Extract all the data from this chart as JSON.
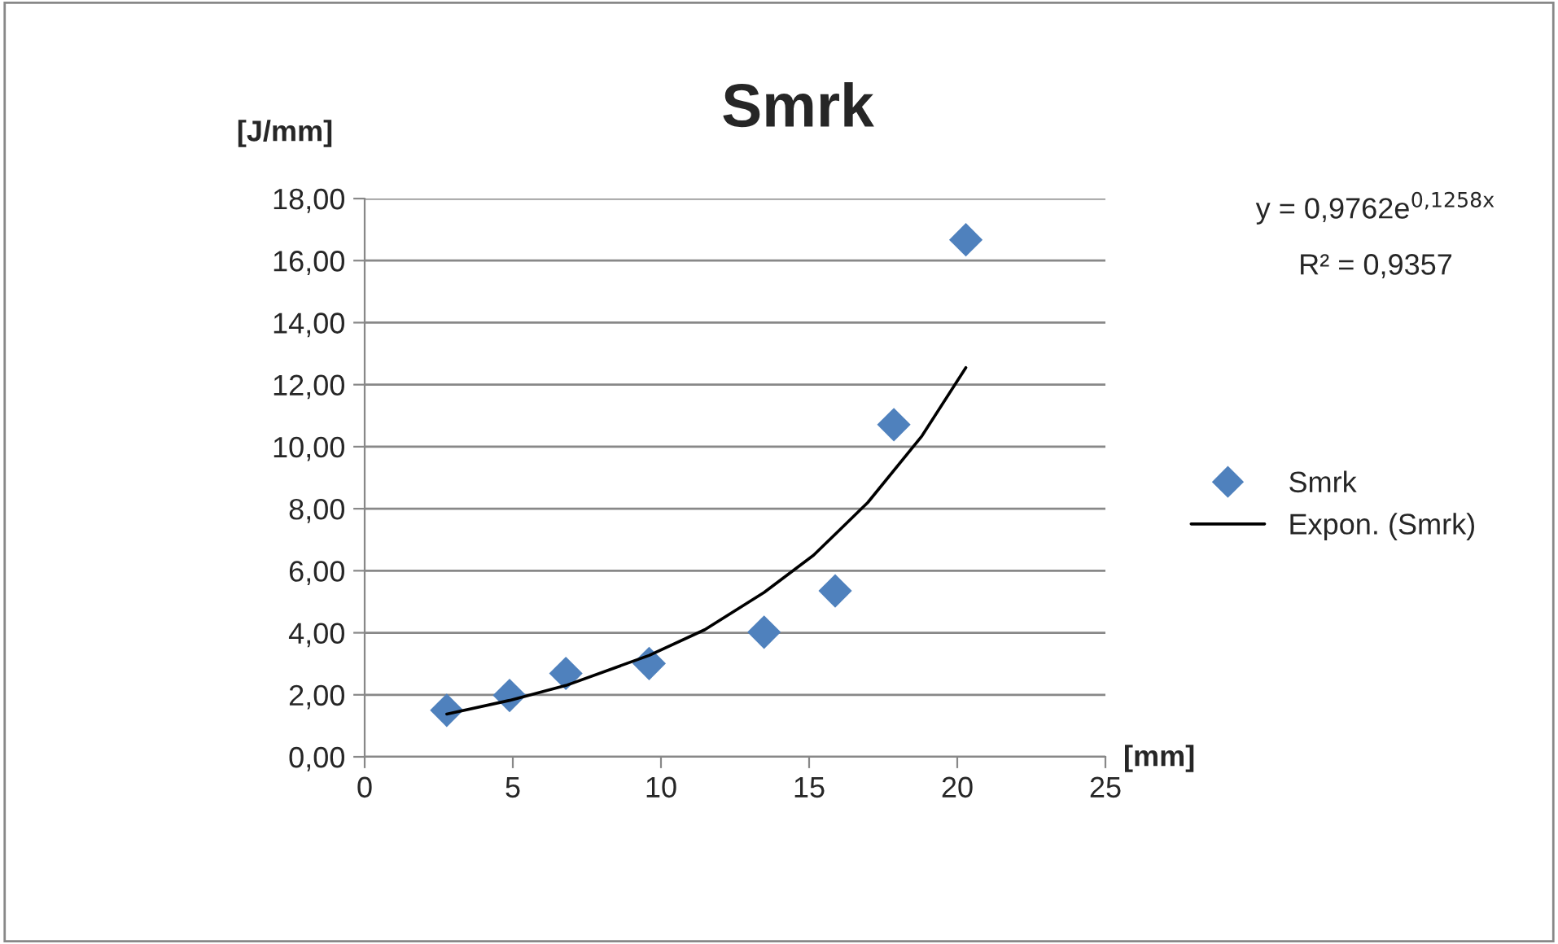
{
  "chart_data": {
    "type": "scatter",
    "title": "Smrk",
    "xlabel": "[mm]",
    "ylabel": "[J/mm]",
    "annotations": [
      "y = 0,9762e$^{0,1258x}$",
      "R² = 0,9357"
    ],
    "series": [
      {
        "name": "Smrk",
        "color": "#4f81bd",
        "marker": "diamond",
        "x": [
          2.77,
          4.89,
          6.79,
          9.6,
          13.48,
          15.88,
          17.86,
          20.29
        ],
        "values": [
          1.5,
          1.98,
          2.69,
          3.01,
          4.02,
          5.35,
          10.71,
          16.67
        ]
      },
      {
        "name": "Expon. (Smrk)",
        "type": "line",
        "color": "#000000",
        "marker": "none",
        "line_style": "solid",
        "x": [
          2.77,
          4.89,
          6.79,
          9.6,
          11.48,
          13.48,
          15.15,
          16.98,
          18.81,
          20.29
        ],
        "values": [
          1.38,
          1.82,
          2.3,
          3.27,
          4.1,
          5.3,
          6.5,
          8.2,
          10.35,
          12.55
        ]
      }
    ],
    "xlim": [
      0,
      25
    ],
    "xticks": [
      0,
      5,
      10,
      15,
      20,
      25
    ],
    "ylim": [
      0,
      18
    ],
    "yticks": [
      {
        "value": 0,
        "label": "0,00"
      },
      {
        "value": 2,
        "label": "2,00"
      },
      {
        "value": 4,
        "label": "4,00"
      },
      {
        "value": 6,
        "label": "6,00"
      },
      {
        "value": 8,
        "label": "8,00"
      },
      {
        "value": 10,
        "label": "10,00"
      },
      {
        "value": 12,
        "label": "12,00"
      },
      {
        "value": 14,
        "label": "14,00"
      },
      {
        "value": 16,
        "label": "16,00"
      },
      {
        "value": 18,
        "label": "18,00"
      }
    ],
    "grid": "y",
    "legend": "right"
  }
}
